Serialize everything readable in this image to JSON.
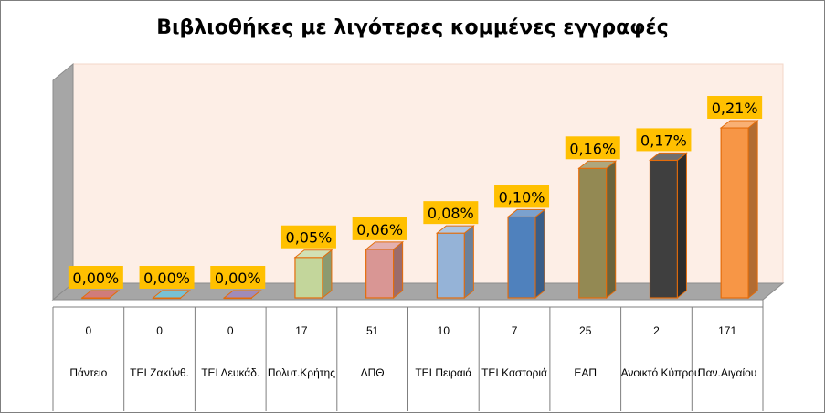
{
  "chart_data": {
    "type": "bar",
    "title": "Βιβλιοθήκες με λιγότερες κομμένες εγγραφές",
    "categories": [
      "Πάντειο",
      "ΤΕΙ Ζακύνθ.",
      "ΤΕΙ Λευκάδ.",
      "Πολυτ.Κρήτης",
      "ΔΠΘ",
      "ΤΕΙ Πειραιά",
      "ΤΕΙ Καστοριά",
      "ΕΑΠ",
      "Ανοικτό Κύπρου",
      "Παν.Αιγαίου"
    ],
    "values": [
      0.0,
      0.0,
      0.0,
      0.05,
      0.06,
      0.08,
      0.1,
      0.16,
      0.17,
      0.21
    ],
    "value_labels": [
      "0,00%",
      "0,00%",
      "0,00%",
      "0,05%",
      "0,06%",
      "0,08%",
      "0,10%",
      "0,16%",
      "0,17%",
      "0,21%"
    ],
    "table_row": [
      "0",
      "0",
      "0",
      "17",
      "51",
      "10",
      "7",
      "25",
      "2",
      "171"
    ],
    "colors": [
      "#c0504d",
      "#4bacc6",
      "#8064a2",
      "#c3d69b",
      "#d99694",
      "#95b3d7",
      "#4f81bd",
      "#938953",
      "#3f3f3f",
      "#f79646"
    ],
    "label_background": "#ffc000",
    "wall_color": "#fdeee6",
    "grid": false,
    "legend": "none"
  }
}
